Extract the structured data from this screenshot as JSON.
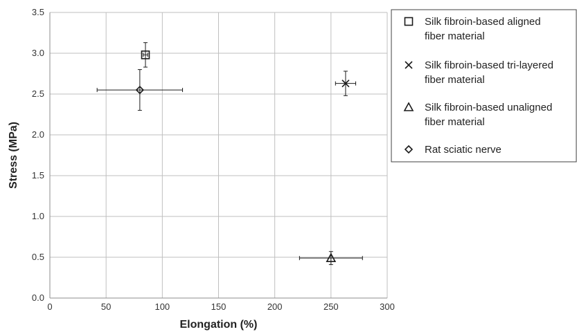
{
  "chart_data": {
    "type": "scatter",
    "title": "",
    "xlabel": "Elongation (%)",
    "ylabel": "Stress (MPa)",
    "xlim": [
      0,
      300
    ],
    "ylim": [
      0,
      3.5
    ],
    "xticks": [
      0,
      50,
      100,
      150,
      200,
      250,
      300
    ],
    "yticks": [
      0.0,
      0.5,
      1.0,
      1.5,
      2.0,
      2.5,
      3.0,
      3.5
    ],
    "x_tick_labels": [
      "0",
      "50",
      "100",
      "150",
      "200",
      "250",
      "300"
    ],
    "y_tick_labels": [
      "0.0",
      "0.5",
      "1.0",
      "1.5",
      "2.0",
      "2.5",
      "3.0",
      "3.5"
    ],
    "grid": true,
    "legend_position": "top-right, outside plot",
    "series": [
      {
        "name": "Silk fibroin-based aligned fiber material",
        "legend_lines": [
          "Silk fibroin-based aligned",
          "fiber material"
        ],
        "marker": "square",
        "points": [
          {
            "x": 85,
            "y": 2.98,
            "x_err": 2,
            "y_err": 0.15
          }
        ]
      },
      {
        "name": "Silk fibroin-based tri-layered fiber material",
        "legend_lines": [
          "Silk fibroin-based tri-layered",
          "fiber material"
        ],
        "marker": "x",
        "points": [
          {
            "x": 263,
            "y": 2.63,
            "x_err": 9,
            "y_err": 0.15
          }
        ]
      },
      {
        "name": "Silk fibroin-based unaligned fiber material",
        "legend_lines": [
          "Silk fibroin-based unaligned",
          "fiber material"
        ],
        "marker": "triangle",
        "points": [
          {
            "x": 250,
            "y": 0.49,
            "x_err": 28,
            "y_err": 0.08
          }
        ]
      },
      {
        "name": "Rat sciatic nerve",
        "legend_lines": [
          "Rat sciatic nerve"
        ],
        "marker": "diamond",
        "points": [
          {
            "x": 80,
            "y": 2.55,
            "x_err": 38,
            "y_err": 0.25
          }
        ]
      }
    ]
  }
}
